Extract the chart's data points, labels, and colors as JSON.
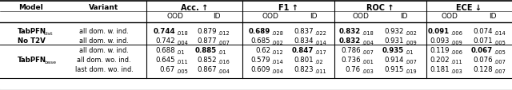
{
  "figsize": [
    6.4,
    1.14
  ],
  "dpi": 100,
  "rows": [
    {
      "model": "TabPFN",
      "model_sub": "dist",
      "variant": "all dom. w. ind.",
      "cells": [
        {
          "val": "0.744",
          "sub": ".018",
          "bold": true
        },
        {
          "val": "0.879",
          "sub": ".012",
          "bold": false
        },
        {
          "val": "0.689",
          "sub": ".028",
          "bold": true
        },
        {
          "val": "0.837",
          "sub": ".022",
          "bold": false
        },
        {
          "val": "0.832",
          "sub": ".018",
          "bold": true
        },
        {
          "val": "0.932",
          "sub": ".002",
          "bold": false
        },
        {
          "val": "0.091",
          "sub": ".006",
          "bold": true
        },
        {
          "val": "0.074",
          "sub": ".014",
          "bold": false
        }
      ],
      "top_thick_border": true
    },
    {
      "model": "No T2V",
      "model_sub": "",
      "variant": "all dom. w. ind.",
      "cells": [
        {
          "val": "0.742",
          "sub": ".004",
          "bold": false
        },
        {
          "val": "0.877",
          "sub": ".007",
          "bold": false
        },
        {
          "val": "0.685",
          "sub": ".002",
          "bold": false
        },
        {
          "val": "0.834",
          "sub": ".014",
          "bold": false
        },
        {
          "val": "0.832",
          "sub": ".004",
          "bold": true
        },
        {
          "val": "0.931",
          "sub": ".009",
          "bold": false
        },
        {
          "val": "0.093",
          "sub": ".009",
          "bold": false
        },
        {
          "val": "0.071",
          "sub": ".005",
          "bold": false
        }
      ],
      "top_thick_border": false
    },
    {
      "model": "",
      "model_sub": "",
      "variant": "all dom. w. ind.",
      "cells": [
        {
          "val": "0.688",
          "sub": ".01",
          "bold": false
        },
        {
          "val": "0.885",
          "sub": ".01",
          "bold": true
        },
        {
          "val": "0.62",
          "sub": ".012",
          "bold": false
        },
        {
          "val": "0.847",
          "sub": ".017",
          "bold": true
        },
        {
          "val": "0.786",
          "sub": ".007",
          "bold": false
        },
        {
          "val": "0.935",
          "sub": ".01",
          "bold": true
        },
        {
          "val": "0.119",
          "sub": ".006",
          "bold": false
        },
        {
          "val": "0.067",
          "sub": ".005",
          "bold": true
        }
      ],
      "top_thick_border": true
    },
    {
      "model": "TabPFN",
      "model_sub": "base",
      "variant": "all dom. wo. ind.",
      "cells": [
        {
          "val": "0.645",
          "sub": ".011",
          "bold": false
        },
        {
          "val": "0.852",
          "sub": ".016",
          "bold": false
        },
        {
          "val": "0.579",
          "sub": ".014",
          "bold": false
        },
        {
          "val": "0.801",
          "sub": ".02",
          "bold": false
        },
        {
          "val": "0.736",
          "sub": ".001",
          "bold": false
        },
        {
          "val": "0.914",
          "sub": ".007",
          "bold": false
        },
        {
          "val": "0.202",
          "sub": ".011",
          "bold": false
        },
        {
          "val": "0.076",
          "sub": ".007",
          "bold": false
        }
      ],
      "top_thick_border": false
    },
    {
      "model": "",
      "model_sub": "",
      "variant": "last dom. wo. ind.",
      "cells": [
        {
          "val": "0.67",
          "sub": ".005",
          "bold": false
        },
        {
          "val": "0.867",
          "sub": ".004",
          "bold": false
        },
        {
          "val": "0.609",
          "sub": ".004",
          "bold": false
        },
        {
          "val": "0.823",
          "sub": ".011",
          "bold": false
        },
        {
          "val": "0.76",
          "sub": ".003",
          "bold": false
        },
        {
          "val": "0.915",
          "sub": ".019",
          "bold": false
        },
        {
          "val": "0.181",
          "sub": ".003",
          "bold": false
        },
        {
          "val": "0.128",
          "sub": ".007",
          "bold": false
        }
      ],
      "top_thick_border": false
    }
  ],
  "metric_headers": [
    "Acc. ↑",
    "F1 ↑",
    "ROC ↑",
    "ECE ↓"
  ],
  "col_headers": [
    "OOD",
    "ID"
  ],
  "bg_color": "#e8e8e8"
}
